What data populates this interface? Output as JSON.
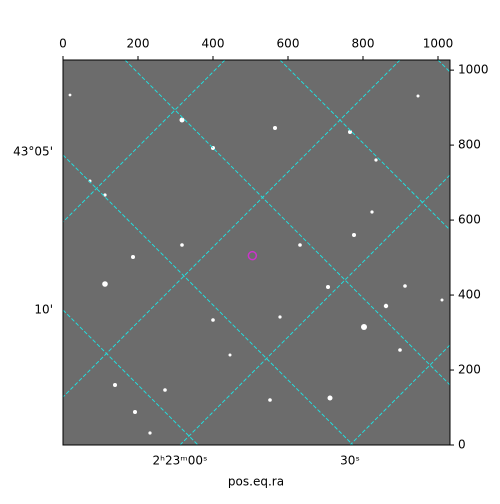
{
  "chart_data": {
    "type": "image",
    "xlabel": "pos.eq.ra",
    "xlim": [
      0,
      1032
    ],
    "ylim": [
      0,
      1027
    ],
    "xticks": [
      0,
      200,
      400,
      600,
      800,
      1000
    ],
    "yticks": [
      0,
      200,
      400,
      600,
      800,
      1000
    ],
    "ra_ticks": [
      "2ʰ23ᵐ00ˢ",
      "30ˢ"
    ],
    "dec_ticks": [
      "43°05'",
      "10'"
    ],
    "series": [
      {
        "color": "#cc33cc",
        "x": [
          505
        ],
        "values": [
          505
        ]
      }
    ]
  }
}
